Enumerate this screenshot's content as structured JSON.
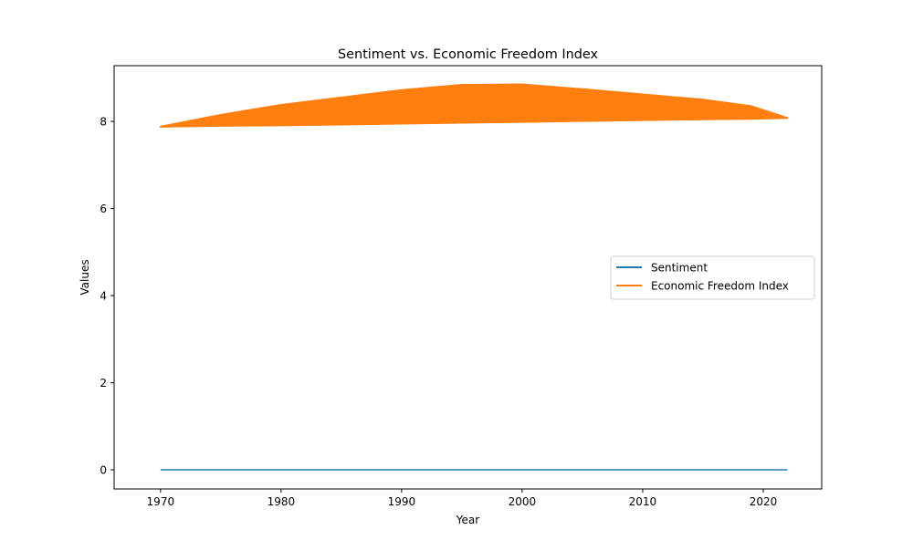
{
  "chart_data": {
    "type": "line",
    "title": "Sentiment vs. Economic Freedom Index",
    "xlabel": "Year",
    "ylabel": "Values",
    "xlim": [
      1966.15,
      2024.85
    ],
    "ylim": [
      -0.44,
      9.28
    ],
    "xticks": [
      1970,
      1980,
      1990,
      2000,
      2010,
      2020
    ],
    "yticks": [
      0,
      2,
      4,
      6,
      8
    ],
    "grid": false,
    "legend_position": "center-right",
    "series": [
      {
        "name": "Sentiment",
        "color": "#1f77b4",
        "x": [
          1970,
          2022
        ],
        "y": [
          0.0,
          0.0
        ]
      },
      {
        "name": "Economic Freedom Index",
        "color": "#ff7f0e",
        "upper_envelope": {
          "x": [
            1970,
            1975,
            1980,
            1985,
            1990,
            1995,
            2000,
            2005,
            2010,
            2015,
            2019,
            2022
          ],
          "y": [
            7.88,
            8.15,
            8.38,
            8.55,
            8.72,
            8.84,
            8.85,
            8.74,
            8.62,
            8.5,
            8.35,
            8.08
          ]
        },
        "lower_envelope": {
          "x": [
            1970,
            1975,
            1980,
            1985,
            1990,
            1995,
            2000,
            2005,
            2010,
            2015,
            2019,
            2022
          ],
          "y": [
            7.88,
            7.9,
            7.91,
            7.93,
            7.95,
            7.97,
            7.99,
            8.01,
            8.03,
            8.05,
            8.06,
            8.08
          ]
        }
      }
    ]
  }
}
